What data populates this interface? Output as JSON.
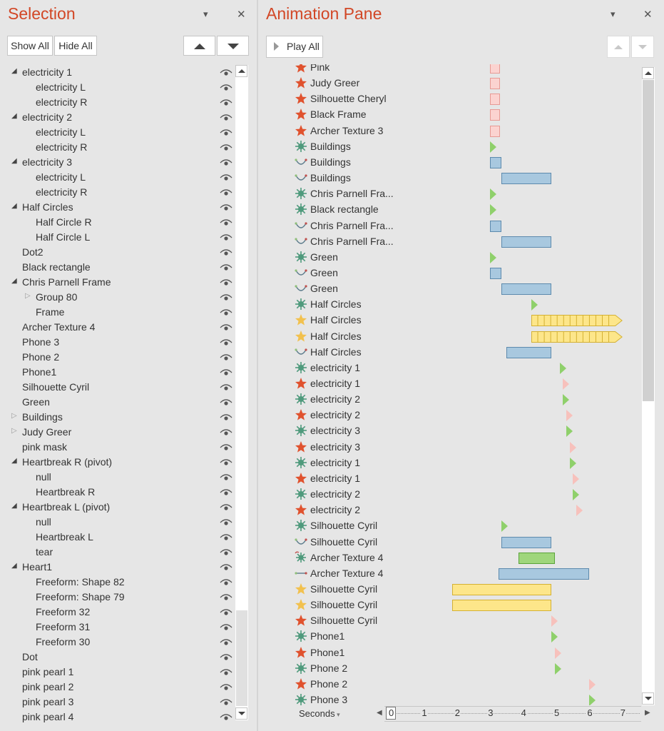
{
  "selection_pane": {
    "title": "Selection",
    "show_all": "Show All",
    "hide_all": "Hide All",
    "items": [
      {
        "label": "electricity 1",
        "level": 0,
        "expander": "open"
      },
      {
        "label": "electricity L",
        "level": 1,
        "expander": ""
      },
      {
        "label": "electricity R",
        "level": 1,
        "expander": ""
      },
      {
        "label": "electricity 2",
        "level": 0,
        "expander": "open"
      },
      {
        "label": "electricity L",
        "level": 1,
        "expander": ""
      },
      {
        "label": "electricity R",
        "level": 1,
        "expander": ""
      },
      {
        "label": "electricity 3",
        "level": 0,
        "expander": "open"
      },
      {
        "label": "electricity L",
        "level": 1,
        "expander": ""
      },
      {
        "label": "electricity R",
        "level": 1,
        "expander": ""
      },
      {
        "label": "Half Circles",
        "level": 0,
        "expander": "open"
      },
      {
        "label": "Half Circle R",
        "level": 1,
        "expander": ""
      },
      {
        "label": "Half Circle L",
        "level": 1,
        "expander": ""
      },
      {
        "label": "Dot2",
        "level": 0,
        "expander": ""
      },
      {
        "label": "Black rectangle",
        "level": 0,
        "expander": ""
      },
      {
        "label": "Chris Parnell Frame",
        "level": 0,
        "expander": "open"
      },
      {
        "label": "Group 80",
        "level": 1,
        "expander": "closed"
      },
      {
        "label": "Frame",
        "level": 1,
        "expander": ""
      },
      {
        "label": "Archer Texture 4",
        "level": 0,
        "expander": ""
      },
      {
        "label": "Phone 3",
        "level": 0,
        "expander": ""
      },
      {
        "label": "Phone 2",
        "level": 0,
        "expander": ""
      },
      {
        "label": "Phone1",
        "level": 0,
        "expander": ""
      },
      {
        "label": "Silhouette Cyril",
        "level": 0,
        "expander": ""
      },
      {
        "label": "Green",
        "level": 0,
        "expander": ""
      },
      {
        "label": "Buildings",
        "level": 0,
        "expander": "closed"
      },
      {
        "label": "Judy Greer",
        "level": 0,
        "expander": "closed"
      },
      {
        "label": "pink mask",
        "level": 0,
        "expander": ""
      },
      {
        "label": "Heartbreak R (pivot)",
        "level": 0,
        "expander": "open"
      },
      {
        "label": "null",
        "level": 1,
        "expander": ""
      },
      {
        "label": "Heartbreak R",
        "level": 1,
        "expander": ""
      },
      {
        "label": "Heartbreak L (pivot)",
        "level": 0,
        "expander": "open"
      },
      {
        "label": "null",
        "level": 1,
        "expander": ""
      },
      {
        "label": "Heartbreak L",
        "level": 1,
        "expander": ""
      },
      {
        "label": "tear",
        "level": 1,
        "expander": ""
      },
      {
        "label": "Heart1",
        "level": 0,
        "expander": "open"
      },
      {
        "label": "Freeform: Shape 82",
        "level": 1,
        "expander": ""
      },
      {
        "label": "Freeform: Shape 79",
        "level": 1,
        "expander": ""
      },
      {
        "label": "Freeform 32",
        "level": 1,
        "expander": ""
      },
      {
        "label": "Freeform 31",
        "level": 1,
        "expander": ""
      },
      {
        "label": "Freeform 30",
        "level": 1,
        "expander": ""
      },
      {
        "label": "Dot",
        "level": 0,
        "expander": ""
      },
      {
        "label": "pink pearl 1",
        "level": 0,
        "expander": ""
      },
      {
        "label": "pink pearl 2",
        "level": 0,
        "expander": ""
      },
      {
        "label": "pink pearl 3",
        "level": 0,
        "expander": ""
      },
      {
        "label": "pink pearl 4",
        "level": 0,
        "expander": ""
      }
    ]
  },
  "animation_pane": {
    "title": "Animation Pane",
    "play_all": "Play All",
    "timeline_label": "Seconds",
    "timeline_ticks": [
      "0",
      "1",
      "2",
      "3",
      "4",
      "5",
      "6",
      "7"
    ],
    "colors": {
      "title": "#d24726",
      "entrance": "#5a9e7c",
      "emphasis": "#e0522e",
      "yellow_star": "#f2c14e",
      "path": "#c0504d"
    },
    "items": [
      {
        "label": "Pink",
        "icon": "emphasis-star-icon",
        "bar": "pink",
        "start": 3.0,
        "end": 3.3
      },
      {
        "label": "Judy Greer",
        "icon": "emphasis-star-icon",
        "bar": "pink",
        "start": 3.0,
        "end": 3.3
      },
      {
        "label": "Silhouette Cheryl",
        "icon": "emphasis-star-icon",
        "bar": "pink",
        "start": 3.0,
        "end": 3.3
      },
      {
        "label": "Black Frame",
        "icon": "emphasis-star-icon",
        "bar": "pink",
        "start": 3.0,
        "end": 3.3
      },
      {
        "label": "Archer Texture 3",
        "icon": "emphasis-star-icon",
        "bar": "pink",
        "start": 3.0,
        "end": 3.3
      },
      {
        "label": "Buildings",
        "icon": "entrance-burst-icon",
        "trigger": "green",
        "start": 3.0
      },
      {
        "label": "Buildings",
        "icon": "motion-path-icon",
        "bar": "blue",
        "start": 3.0,
        "end": 3.35
      },
      {
        "label": "Buildings",
        "icon": "motion-path-icon",
        "bar": "blue",
        "start": 3.35,
        "end": 4.85
      },
      {
        "label": "Chris Parnell Fra...",
        "icon": "entrance-burst-icon",
        "trigger": "green",
        "start": 3.0
      },
      {
        "label": "Black rectangle",
        "icon": "entrance-burst-icon",
        "trigger": "green",
        "start": 3.0
      },
      {
        "label": "Chris Parnell Fra...",
        "icon": "motion-path-icon",
        "bar": "blue",
        "start": 3.0,
        "end": 3.35
      },
      {
        "label": "Chris Parnell Fra...",
        "icon": "motion-path-icon",
        "bar": "blue",
        "start": 3.35,
        "end": 4.85
      },
      {
        "label": "Green",
        "icon": "entrance-burst-icon",
        "trigger": "green",
        "start": 3.0
      },
      {
        "label": "Green",
        "icon": "motion-path-icon",
        "bar": "blue",
        "start": 3.0,
        "end": 3.35
      },
      {
        "label": "Green",
        "icon": "motion-path-icon",
        "bar": "blue",
        "start": 3.35,
        "end": 4.85
      },
      {
        "label": "Half Circles",
        "icon": "entrance-burst-icon",
        "trigger": "green",
        "start": 4.25
      },
      {
        "label": "Half Circles",
        "icon": "yellow-star-icon",
        "bar": "yellow-repeat",
        "start": 4.25,
        "end": 7.0
      },
      {
        "label": "Half Circles",
        "icon": "yellow-star-icon",
        "bar": "yellow-repeat",
        "start": 4.25,
        "end": 7.0
      },
      {
        "label": "Half Circles",
        "icon": "motion-path-icon",
        "bar": "blue",
        "start": 3.5,
        "end": 4.85
      },
      {
        "label": "electricity 1",
        "icon": "entrance-burst-icon",
        "trigger": "green",
        "start": 5.1
      },
      {
        "label": "electricity 1",
        "icon": "emphasis-star-icon",
        "trigger": "pink",
        "start": 5.2
      },
      {
        "label": "electricity 2",
        "icon": "entrance-burst-icon",
        "trigger": "green",
        "start": 5.2
      },
      {
        "label": "electricity 2",
        "icon": "emphasis-star-icon",
        "trigger": "pink",
        "start": 5.3
      },
      {
        "label": "electricity 3",
        "icon": "entrance-burst-icon",
        "trigger": "green",
        "start": 5.3
      },
      {
        "label": "electricity 3",
        "icon": "emphasis-star-icon",
        "trigger": "pink",
        "start": 5.4
      },
      {
        "label": "electricity 1",
        "icon": "entrance-burst-icon",
        "trigger": "green",
        "start": 5.4
      },
      {
        "label": "electricity 1",
        "icon": "emphasis-star-icon",
        "trigger": "pink",
        "start": 5.5
      },
      {
        "label": "electricity 2",
        "icon": "entrance-burst-icon",
        "trigger": "green",
        "start": 5.5
      },
      {
        "label": "electricity 2",
        "icon": "emphasis-star-icon",
        "trigger": "pink",
        "start": 5.6
      },
      {
        "label": "Silhouette Cyril",
        "icon": "entrance-burst-icon",
        "trigger": "green",
        "start": 3.35
      },
      {
        "label": "Silhouette Cyril",
        "icon": "motion-path-icon",
        "bar": "blue",
        "start": 3.35,
        "end": 4.85
      },
      {
        "label": "Archer Texture 4",
        "icon": "entrance-spin-icon",
        "bar": "green",
        "start": 3.85,
        "end": 4.95
      },
      {
        "label": "Archer Texture 4",
        "icon": "line-path-icon",
        "bar": "blue",
        "start": 3.25,
        "end": 6.0
      },
      {
        "label": "Silhouette Cyril",
        "icon": "yellow-star-icon",
        "bar": "yellow",
        "start": 1.85,
        "end": 4.85
      },
      {
        "label": "Silhouette Cyril",
        "icon": "yellow-star-icon",
        "bar": "yellow",
        "start": 1.85,
        "end": 4.85
      },
      {
        "label": "Silhouette Cyril",
        "icon": "emphasis-star-icon",
        "trigger": "pink",
        "start": 4.85
      },
      {
        "label": "Phone1",
        "icon": "entrance-burst-icon",
        "trigger": "green",
        "start": 4.85
      },
      {
        "label": "Phone1",
        "icon": "emphasis-star-icon",
        "trigger": "pink",
        "start": 4.95
      },
      {
        "label": "Phone 2",
        "icon": "entrance-burst-icon",
        "trigger": "green",
        "start": 4.95
      },
      {
        "label": "Phone 2",
        "icon": "emphasis-star-icon",
        "trigger": "pink",
        "start": 6.0
      },
      {
        "label": "Phone 3",
        "icon": "entrance-burst-icon",
        "trigger": "green",
        "start": 6.0
      }
    ]
  }
}
